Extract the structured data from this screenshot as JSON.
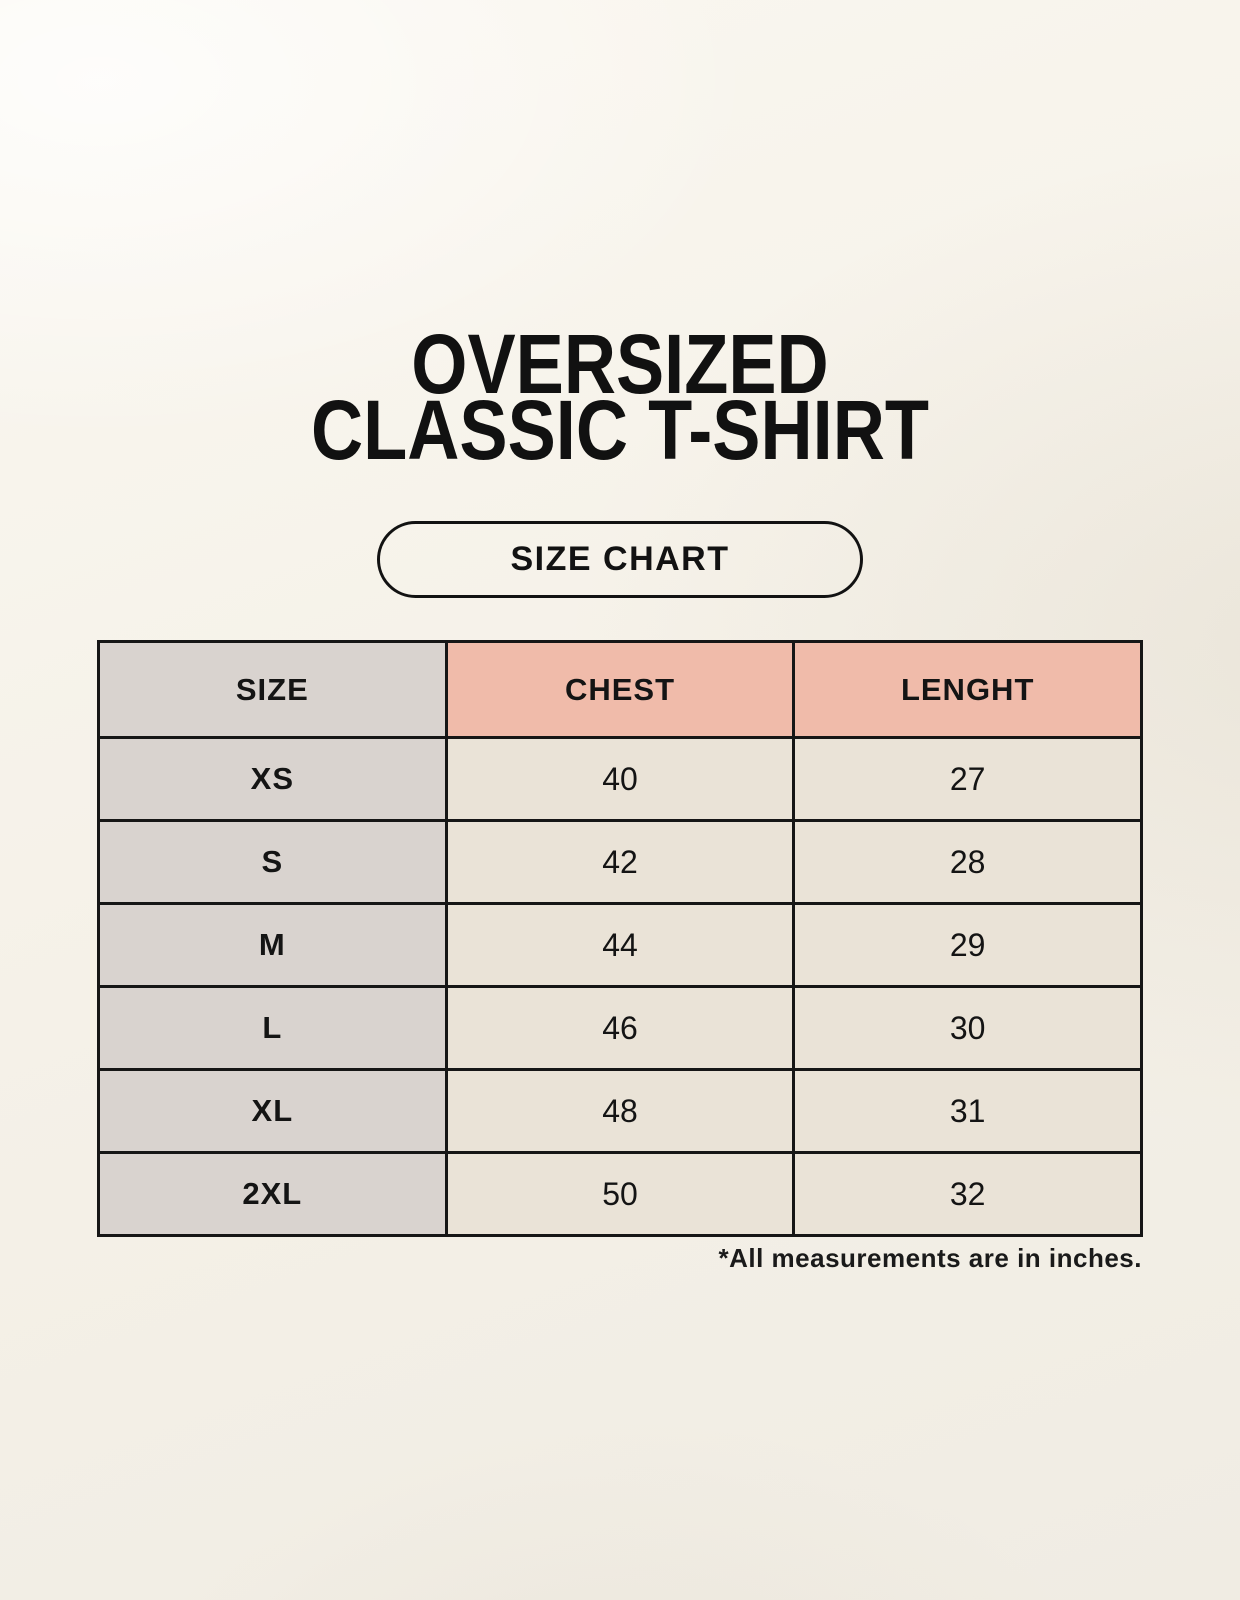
{
  "page": {
    "title_line1": "OVERSIZED",
    "title_line2": "CLASSIC T-SHIRT",
    "size_chart_badge_label": "SIZE CHART"
  },
  "chart_data": {
    "type": "table",
    "title": "OVERSIZED CLASSIC T-SHIRT",
    "columns": [
      "SIZE",
      "CHEST",
      "LENGHT"
    ],
    "rows": [
      [
        "XS",
        40,
        27
      ],
      [
        "S",
        42,
        28
      ],
      [
        "M",
        44,
        29
      ],
      [
        "L",
        46,
        30
      ],
      [
        "XL",
        48,
        31
      ],
      [
        "2XL",
        50,
        32
      ]
    ],
    "units_note": "*All measurements are in inches.",
    "layout": {
      "legend_position": "none",
      "grid": "full-borders"
    }
  },
  "colors": {
    "background": "#f5f1e8",
    "accent_salmon": "#f0bbaa",
    "neutral_gray": "#d9d3cf",
    "cell_cream": "#eae3d7",
    "border": "#161616",
    "text": "#141414"
  }
}
